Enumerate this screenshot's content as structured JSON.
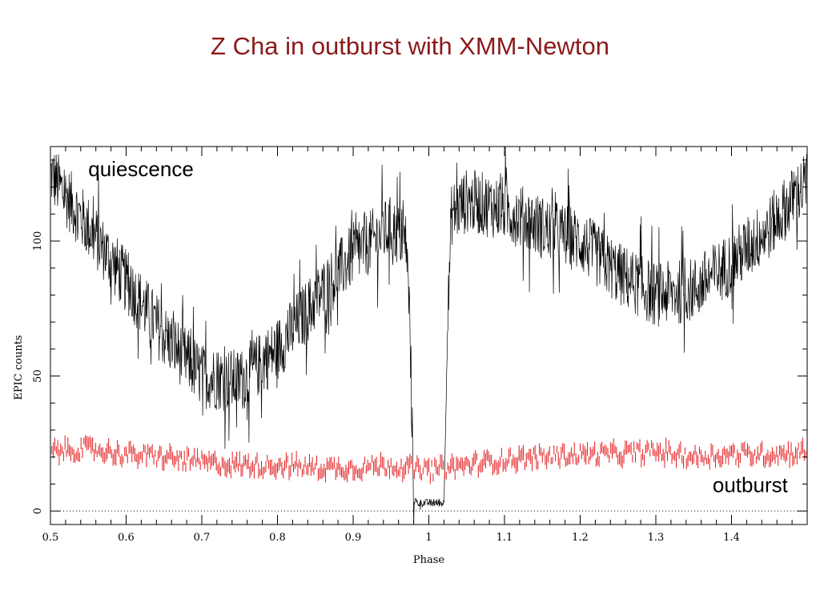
{
  "slide": {
    "title": "Z Cha in outburst with XMM-Newton"
  },
  "chart_data": {
    "type": "line",
    "title": "Z Cha in outburst with XMM-Newton",
    "xlabel": "Phase",
    "ylabel": "EPIC counts",
    "xlim": [
      0.5,
      1.5
    ],
    "ylim": [
      -5,
      135
    ],
    "x_ticks": [
      0.5,
      0.6,
      0.7,
      0.8,
      0.9,
      1,
      1.1,
      1.2,
      1.3,
      1.4
    ],
    "x_tick_labels": [
      "0.5",
      "0.6",
      "0.7",
      "0.8",
      "0.9",
      "1",
      "1.1",
      "1.2",
      "1.3",
      "1.4"
    ],
    "y_ticks": [
      0,
      50,
      100
    ],
    "y_tick_labels": [
      "0",
      "50",
      "100"
    ],
    "zero_line": {
      "y": 0,
      "style": "dotted"
    },
    "grid": false,
    "annotations": [
      {
        "text": "quiescence",
        "x": 0.55,
        "y": 124
      },
      {
        "text": "outburst",
        "x": 1.375,
        "y": 7
      }
    ],
    "series": [
      {
        "color": "#000000",
        "scatter": 12,
        "x": [
          0.5,
          0.55,
          0.6,
          0.65,
          0.7,
          0.75,
          0.8,
          0.85,
          0.9,
          0.95,
          0.97,
          0.975,
          0.98,
          0.985,
          1.02,
          1.025,
          1.03,
          1.05,
          1.1,
          1.15,
          1.2,
          1.25,
          1.3,
          1.35,
          1.4,
          1.45,
          1.5
        ],
        "y": [
          125,
          105,
          85,
          65,
          50,
          48,
          60,
          78,
          95,
          105,
          100,
          70,
          4,
          3,
          3,
          70,
          110,
          115,
          112,
          105,
          100,
          88,
          80,
          82,
          92,
          105,
          122
        ]
      },
      {
        "color": "#e31a1c",
        "scatter": 3,
        "x": [
          0.5,
          0.55,
          0.6,
          0.65,
          0.7,
          0.75,
          0.8,
          0.85,
          0.9,
          0.95,
          1.0,
          1.05,
          1.1,
          1.15,
          1.2,
          1.25,
          1.3,
          1.35,
          1.4,
          1.45,
          1.5
        ],
        "y": [
          22,
          23,
          21,
          20,
          18,
          17,
          17,
          16,
          16,
          17,
          15,
          17,
          19,
          20,
          21,
          21,
          22,
          20,
          21,
          21,
          22
        ]
      }
    ]
  }
}
